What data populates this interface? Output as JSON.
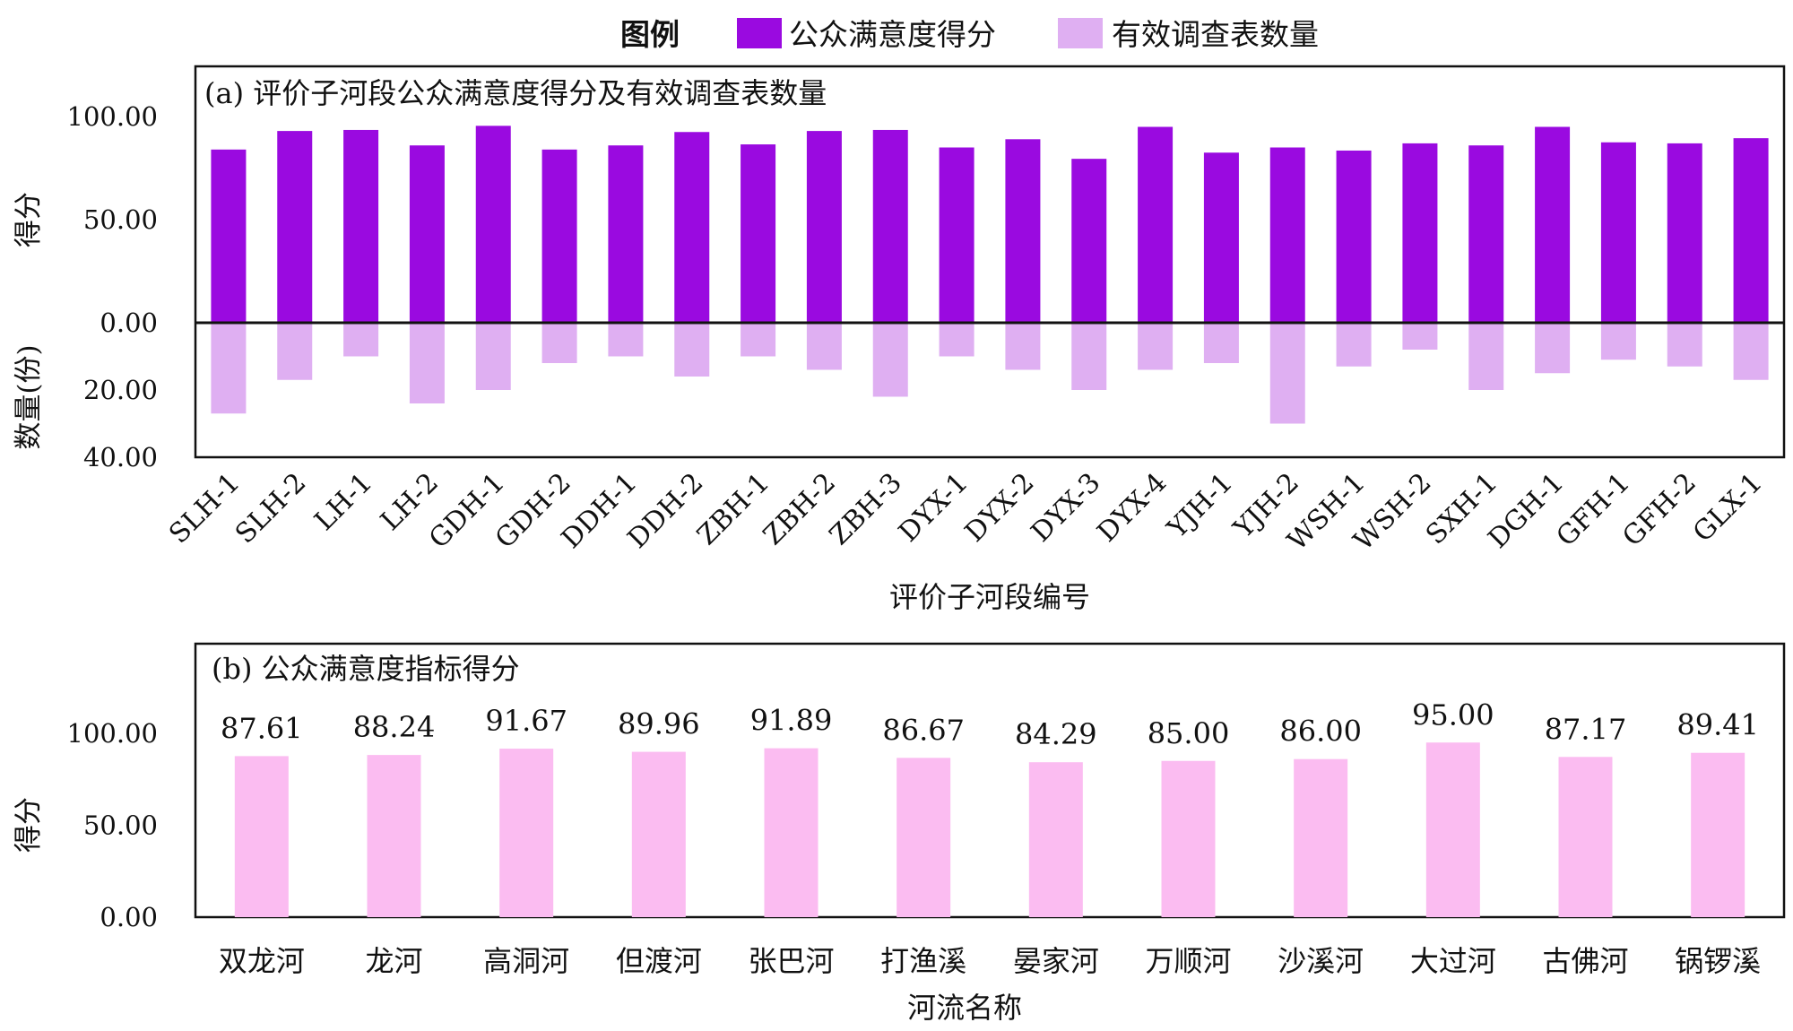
{
  "legend": {
    "title": "图例",
    "items": [
      {
        "label": "公众满意度得分",
        "color": "#9a0ae0"
      },
      {
        "label": "有效调查表数量",
        "color": "#dfaff2"
      }
    ]
  },
  "chart_data": [
    {
      "type": "bar",
      "panel": "a",
      "title": "(a) 评价子河段公众满意度得分及有效调查表数量",
      "xlabel": "评价子河段编号",
      "ylabel_top": "得分",
      "ylabel_bottom": "数量(份)",
      "y_ticks_top": [
        "100.00",
        "50.00",
        "0.00"
      ],
      "y_ticks_bottom": [
        "20.00",
        "40.00"
      ],
      "ylim_top": [
        0,
        125
      ],
      "ylim_bottom": [
        0,
        40
      ],
      "grid": false,
      "legend_position": "top",
      "categories": [
        "SLH-1",
        "SLH-2",
        "LH-1",
        "LH-2",
        "GDH-1",
        "GDH-2",
        "DDH-1",
        "DDH-2",
        "ZBH-1",
        "ZBH-2",
        "ZBH-3",
        "DYX-1",
        "DYX-2",
        "DYX-3",
        "DYX-4",
        "YJH-1",
        "YJH-2",
        "WSH-1",
        "WSH-2",
        "SXH-1",
        "DGH-1",
        "GFH-1",
        "GFH-2",
        "GLX-1"
      ],
      "series": [
        {
          "name": "公众满意度得分",
          "color": "#9a0ae0",
          "direction": "up",
          "values": [
            84.0,
            93.0,
            93.5,
            86.0,
            95.5,
            84.0,
            86.0,
            92.5,
            86.5,
            93.0,
            93.5,
            85.0,
            89.0,
            79.5,
            95.0,
            82.5,
            85.0,
            83.5,
            87.0,
            86.0,
            95.0,
            87.5,
            87.0,
            89.5
          ]
        },
        {
          "name": "有效调查表数量",
          "color": "#dfaff2",
          "direction": "down",
          "values": [
            27,
            17,
            10,
            24,
            20,
            12,
            10,
            16,
            10,
            14,
            22,
            10,
            14,
            20,
            14,
            12,
            30,
            13,
            8,
            20,
            15,
            11,
            13,
            17
          ]
        }
      ]
    },
    {
      "type": "bar",
      "panel": "b",
      "title": "(b) 公众满意度指标得分",
      "xlabel": "河流名称",
      "ylabel": "得分",
      "y_ticks": [
        "100.00",
        "50.00",
        "0.00"
      ],
      "ylim": [
        0,
        120
      ],
      "grid": false,
      "categories": [
        "双龙河",
        "龙河",
        "高洞河",
        "但渡河",
        "张巴河",
        "打渔溪",
        "晏家河",
        "万顺河",
        "沙溪河",
        "大过河",
        "古佛河",
        "锅锣溪"
      ],
      "series": [
        {
          "color": "#fbbcf1",
          "values": [
            87.61,
            88.24,
            91.67,
            89.96,
            91.89,
            86.67,
            84.29,
            85.0,
            86.0,
            95.0,
            87.17,
            89.41
          ],
          "labels": [
            "87.61",
            "88.24",
            "91.67",
            "89.96",
            "91.89",
            "86.67",
            "84.29",
            "85.00",
            "86.00",
            "95.00",
            "87.17",
            "89.41"
          ]
        }
      ]
    }
  ]
}
